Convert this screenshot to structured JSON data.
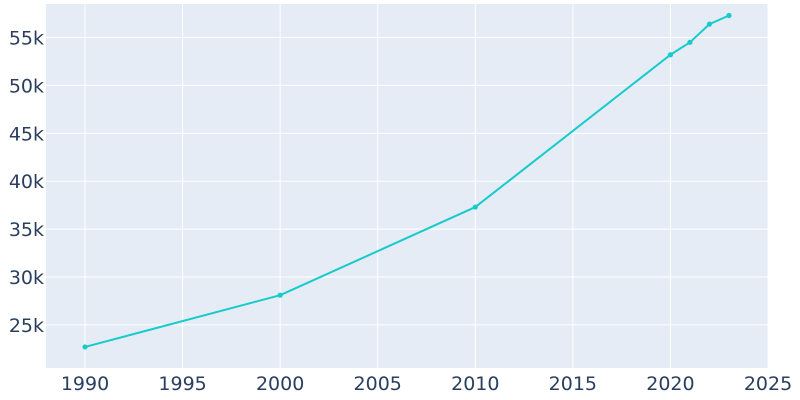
{
  "chart_data": {
    "type": "line",
    "title": "",
    "xlabel": "",
    "ylabel": "",
    "x": [
      1990,
      2000,
      2010,
      2020,
      2021,
      2022,
      2023
    ],
    "series": [
      {
        "values": [
          22700,
          28100,
          37300,
          53200,
          54500,
          56400,
          57300
        ]
      }
    ],
    "xlim": [
      1988,
      2025
    ],
    "ylim": [
      20500,
      58500
    ],
    "x_ticks": [
      {
        "value": 1990,
        "label": "1990"
      },
      {
        "value": 1995,
        "label": "1995"
      },
      {
        "value": 2000,
        "label": "2000"
      },
      {
        "value": 2005,
        "label": "2005"
      },
      {
        "value": 2010,
        "label": "2010"
      },
      {
        "value": 2015,
        "label": "2015"
      },
      {
        "value": 2020,
        "label": "2020"
      },
      {
        "value": 2025,
        "label": "2025"
      }
    ],
    "y_ticks": [
      {
        "value": 25000,
        "label": "25k"
      },
      {
        "value": 30000,
        "label": "30k"
      },
      {
        "value": 35000,
        "label": "35k"
      },
      {
        "value": 40000,
        "label": "40k"
      },
      {
        "value": 45000,
        "label": "45k"
      },
      {
        "value": 50000,
        "label": "50k"
      },
      {
        "value": 55000,
        "label": "55k"
      }
    ],
    "grid": true,
    "legend": "none",
    "colors": {
      "line": "#17cbcb",
      "plot_background": "#e5ecf6",
      "grid": "#ffffff",
      "text": "#2a3f5f"
    }
  }
}
